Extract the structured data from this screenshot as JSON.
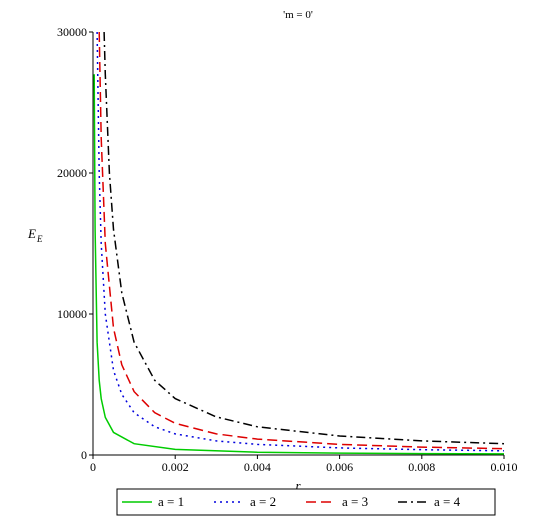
{
  "chart_data": {
    "type": "line",
    "title": "'m = 0'",
    "xlabel": "r",
    "ylabel": "E",
    "ylabel_subscript": "E",
    "xlim": [
      0,
      0.01
    ],
    "ylim": [
      0,
      30000
    ],
    "x_ticks": [
      "0",
      "0.002",
      "0.004",
      "0.006",
      "0.008",
      "0.010"
    ],
    "y_ticks": [
      "0",
      "10000",
      "20000",
      "30000"
    ],
    "grid": false,
    "legend_position": "bottom",
    "series": [
      {
        "name": "a = 1",
        "color": "#00cc00",
        "dash": "solid",
        "x": [
          3e-05,
          5e-05,
          0.0001,
          0.00015,
          0.0002,
          0.0003,
          0.0005,
          0.001,
          0.002,
          0.004,
          0.006,
          0.008,
          0.01
        ],
        "y": [
          27000,
          16000,
          8000,
          5300,
          4000,
          2670,
          1600,
          800,
          400,
          200,
          133,
          100,
          80
        ]
      },
      {
        "name": "a = 2",
        "color": "#0000dd",
        "dash": "dot",
        "x": [
          0.0001,
          0.00015,
          0.0002,
          0.0003,
          0.0005,
          0.0007,
          0.001,
          0.0015,
          0.002,
          0.003,
          0.004,
          0.006,
          0.008,
          0.01
        ],
        "y": [
          30000,
          20000,
          15000,
          10000,
          6000,
          4300,
          3000,
          2000,
          1500,
          1000,
          750,
          500,
          375,
          300
        ]
      },
      {
        "name": "a = 3",
        "color": "#dd0000",
        "dash": "dash",
        "x": [
          0.00015,
          0.0002,
          0.0003,
          0.0005,
          0.0007,
          0.001,
          0.0015,
          0.002,
          0.003,
          0.004,
          0.006,
          0.008,
          0.01
        ],
        "y": [
          30000,
          22500,
          15000,
          9000,
          6400,
          4500,
          3000,
          2250,
          1500,
          1125,
          750,
          560,
          450
        ]
      },
      {
        "name": "a = 4",
        "color": "#000000",
        "dash": "dashdot",
        "x": [
          0.00027,
          0.0003,
          0.0004,
          0.0005,
          0.0007,
          0.001,
          0.0015,
          0.002,
          0.003,
          0.004,
          0.006,
          0.008,
          0.01
        ],
        "y": [
          30000,
          27000,
          20000,
          16000,
          11500,
          8000,
          5300,
          4000,
          2700,
          2000,
          1350,
          1000,
          800
        ]
      }
    ]
  },
  "legend": {
    "items": [
      {
        "label": "a = 1"
      },
      {
        "label": "a = 2"
      },
      {
        "label": "a = 3"
      },
      {
        "label": "a = 4"
      }
    ]
  }
}
